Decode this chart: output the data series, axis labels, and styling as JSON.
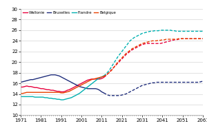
{
  "legend": [
    "Wallonie",
    "Bruxelles",
    "Flandre",
    "Belgique"
  ],
  "legend_colors": [
    "#e8003d",
    "#1f2d7b",
    "#00b0b0",
    "#e84000"
  ],
  "xlim": [
    1971,
    2061
  ],
  "ylim": [
    10.0,
    30.0
  ],
  "yticks": [
    10.0,
    12.0,
    14.0,
    16.0,
    18.0,
    20.0,
    22.0,
    24.0,
    26.0,
    28.0,
    30.0
  ],
  "xticks": [
    1971,
    1981,
    1991,
    2001,
    2011,
    2021,
    2031,
    2041,
    2051,
    2061
  ],
  "solid_end_year": 2012,
  "wallonie_x": [
    1971,
    1972,
    1973,
    1974,
    1975,
    1976,
    1977,
    1978,
    1979,
    1980,
    1981,
    1982,
    1983,
    1984,
    1985,
    1986,
    1987,
    1988,
    1989,
    1990,
    1991,
    1992,
    1993,
    1994,
    1995,
    1996,
    1997,
    1998,
    1999,
    2000,
    2001,
    2002,
    2003,
    2004,
    2005,
    2006,
    2007,
    2008,
    2009,
    2010,
    2011,
    2012,
    2013,
    2014,
    2015,
    2016,
    2017,
    2018,
    2019,
    2020,
    2021,
    2022,
    2023,
    2024,
    2025,
    2026,
    2027,
    2028,
    2029,
    2030,
    2031,
    2032,
    2033,
    2034,
    2035,
    2036,
    2037,
    2038,
    2039,
    2040,
    2041,
    2042,
    2043,
    2044,
    2045,
    2046,
    2047,
    2048,
    2049,
    2050,
    2051,
    2052,
    2053,
    2054,
    2055,
    2056,
    2057,
    2058,
    2059,
    2060,
    2061
  ],
  "wallonie_y": [
    15.3,
    15.3,
    15.4,
    15.5,
    15.4,
    15.4,
    15.3,
    15.2,
    15.2,
    15.1,
    15.0,
    15.0,
    14.9,
    14.8,
    14.8,
    14.7,
    14.7,
    14.6,
    14.5,
    14.5,
    14.4,
    14.4,
    14.5,
    14.7,
    14.8,
    15.0,
    15.2,
    15.4,
    15.6,
    15.8,
    16.0,
    16.2,
    16.4,
    16.6,
    16.7,
    16.8,
    16.8,
    16.8,
    16.8,
    16.8,
    16.9,
    17.1,
    17.4,
    17.8,
    18.2,
    18.6,
    19.0,
    19.4,
    19.8,
    20.2,
    20.6,
    21.0,
    21.4,
    21.7,
    22.0,
    22.3,
    22.5,
    22.7,
    22.9,
    23.1,
    23.3,
    23.4,
    23.5,
    23.5,
    23.5,
    23.5,
    23.5,
    23.5,
    23.5,
    23.5,
    23.6,
    23.7,
    23.8,
    23.9,
    24.0,
    24.1,
    24.2,
    24.2,
    24.3,
    24.4,
    24.4,
    24.4,
    24.4,
    24.4,
    24.4,
    24.4,
    24.4,
    24.4,
    24.4,
    24.4,
    24.4
  ],
  "bruxelles_x": [
    1971,
    1972,
    1973,
    1974,
    1975,
    1976,
    1977,
    1978,
    1979,
    1980,
    1981,
    1982,
    1983,
    1984,
    1985,
    1986,
    1987,
    1988,
    1989,
    1990,
    1991,
    1992,
    1993,
    1994,
    1995,
    1996,
    1997,
    1998,
    1999,
    2000,
    2001,
    2002,
    2003,
    2004,
    2005,
    2006,
    2007,
    2008,
    2009,
    2010,
    2011,
    2012,
    2013,
    2014,
    2015,
    2016,
    2017,
    2018,
    2019,
    2020,
    2021,
    2022,
    2023,
    2024,
    2025,
    2026,
    2027,
    2028,
    2029,
    2030,
    2031,
    2032,
    2033,
    2034,
    2035,
    2036,
    2037,
    2038,
    2039,
    2040,
    2041,
    2042,
    2043,
    2044,
    2045,
    2046,
    2047,
    2048,
    2049,
    2050,
    2051,
    2052,
    2053,
    2054,
    2055,
    2056,
    2057,
    2058,
    2059,
    2060,
    2061
  ],
  "bruxelles_y": [
    16.2,
    16.3,
    16.4,
    16.5,
    16.6,
    16.7,
    16.7,
    16.8,
    16.9,
    17.0,
    17.1,
    17.2,
    17.3,
    17.4,
    17.5,
    17.6,
    17.6,
    17.6,
    17.5,
    17.4,
    17.2,
    17.0,
    16.8,
    16.6,
    16.4,
    16.2,
    16.0,
    15.8,
    15.6,
    15.4,
    15.3,
    15.2,
    15.1,
    15.0,
    15.0,
    15.0,
    15.0,
    15.0,
    14.9,
    14.7,
    14.4,
    14.2,
    14.0,
    13.8,
    13.7,
    13.7,
    13.7,
    13.7,
    13.7,
    13.7,
    13.8,
    13.9,
    14.0,
    14.2,
    14.4,
    14.6,
    14.8,
    15.0,
    15.2,
    15.4,
    15.6,
    15.7,
    15.8,
    15.9,
    16.0,
    16.1,
    16.1,
    16.2,
    16.2,
    16.2,
    16.2,
    16.2,
    16.2,
    16.2,
    16.2,
    16.2,
    16.2,
    16.2,
    16.2,
    16.2,
    16.2,
    16.2,
    16.2,
    16.2,
    16.2,
    16.2,
    16.2,
    16.2,
    16.2,
    16.3,
    16.4
  ],
  "flandre_x": [
    1971,
    1972,
    1973,
    1974,
    1975,
    1976,
    1977,
    1978,
    1979,
    1980,
    1981,
    1982,
    1983,
    1984,
    1985,
    1986,
    1987,
    1988,
    1989,
    1990,
    1991,
    1992,
    1993,
    1994,
    1995,
    1996,
    1997,
    1998,
    1999,
    2000,
    2001,
    2002,
    2003,
    2004,
    2005,
    2006,
    2007,
    2008,
    2009,
    2010,
    2011,
    2012,
    2013,
    2014,
    2015,
    2016,
    2017,
    2018,
    2019,
    2020,
    2021,
    2022,
    2023,
    2024,
    2025,
    2026,
    2027,
    2028,
    2029,
    2030,
    2031,
    2032,
    2033,
    2034,
    2035,
    2036,
    2037,
    2038,
    2039,
    2040,
    2041,
    2042,
    2043,
    2044,
    2045,
    2046,
    2047,
    2048,
    2049,
    2050,
    2051,
    2052,
    2053,
    2054,
    2055,
    2056,
    2057,
    2058,
    2059,
    2060,
    2061
  ],
  "flandre_y": [
    13.5,
    13.5,
    13.5,
    13.5,
    13.5,
    13.5,
    13.5,
    13.4,
    13.4,
    13.4,
    13.4,
    13.4,
    13.3,
    13.3,
    13.2,
    13.2,
    13.1,
    13.1,
    13.0,
    13.0,
    12.9,
    12.9,
    13.0,
    13.1,
    13.2,
    13.3,
    13.5,
    13.7,
    13.9,
    14.1,
    14.4,
    14.7,
    15.0,
    15.3,
    15.6,
    15.9,
    16.2,
    16.5,
    16.8,
    17.0,
    17.2,
    17.4,
    17.7,
    18.1,
    18.6,
    19.2,
    19.8,
    20.4,
    21.0,
    21.5,
    22.0,
    22.5,
    23.0,
    23.5,
    24.0,
    24.3,
    24.6,
    24.8,
    25.0,
    25.2,
    25.4,
    25.5,
    25.6,
    25.7,
    25.8,
    25.8,
    25.9,
    25.9,
    25.9,
    26.0,
    26.0,
    26.0,
    26.0,
    26.0,
    26.0,
    25.9,
    25.9,
    25.8,
    25.8,
    25.8,
    25.8,
    25.8,
    25.8,
    25.8,
    25.8,
    25.8,
    25.8,
    25.8,
    25.8,
    25.8,
    25.8
  ],
  "belgique_x": [
    1971,
    1972,
    1973,
    1974,
    1975,
    1976,
    1977,
    1978,
    1979,
    1980,
    1981,
    1982,
    1983,
    1984,
    1985,
    1986,
    1987,
    1988,
    1989,
    1990,
    1991,
    1992,
    1993,
    1994,
    1995,
    1996,
    1997,
    1998,
    1999,
    2000,
    2001,
    2002,
    2003,
    2004,
    2005,
    2006,
    2007,
    2008,
    2009,
    2010,
    2011,
    2012,
    2013,
    2014,
    2015,
    2016,
    2017,
    2018,
    2019,
    2020,
    2021,
    2022,
    2023,
    2024,
    2025,
    2026,
    2027,
    2028,
    2029,
    2030,
    2031,
    2032,
    2033,
    2034,
    2035,
    2036,
    2037,
    2038,
    2039,
    2040,
    2041,
    2042,
    2043,
    2044,
    2045,
    2046,
    2047,
    2048,
    2049,
    2050,
    2051,
    2052,
    2053,
    2054,
    2055,
    2056,
    2057,
    2058,
    2059,
    2060,
    2061
  ],
  "belgique_y": [
    14.1,
    14.1,
    14.2,
    14.3,
    14.3,
    14.3,
    14.3,
    14.3,
    14.3,
    14.3,
    14.3,
    14.3,
    14.3,
    14.3,
    14.3,
    14.3,
    14.3,
    14.3,
    14.3,
    14.3,
    14.2,
    14.2,
    14.3,
    14.4,
    14.5,
    14.7,
    14.9,
    15.1,
    15.3,
    15.5,
    15.7,
    15.9,
    16.1,
    16.3,
    16.5,
    16.7,
    16.8,
    16.9,
    17.0,
    17.1,
    17.2,
    17.3,
    17.5,
    17.8,
    18.1,
    18.5,
    19.0,
    19.5,
    20.0,
    20.4,
    20.8,
    21.2,
    21.6,
    21.9,
    22.2,
    22.5,
    22.7,
    22.9,
    23.1,
    23.3,
    23.5,
    23.6,
    23.7,
    23.8,
    23.9,
    24.0,
    24.0,
    24.0,
    24.1,
    24.1,
    24.2,
    24.2,
    24.3,
    24.3,
    24.3,
    24.3,
    24.3,
    24.3,
    24.4,
    24.4,
    24.4,
    24.4,
    24.4,
    24.4,
    24.4,
    24.4,
    24.4,
    24.4,
    24.4,
    24.4,
    24.4
  ],
  "background_color": "#ffffff",
  "grid_color": "#cccccc",
  "tick_fontsize": 5.0,
  "linewidth": 1.0
}
